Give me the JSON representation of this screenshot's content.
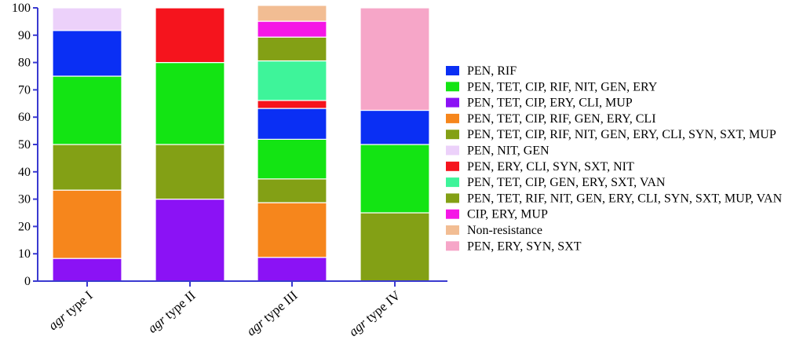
{
  "chart_data": {
    "type": "bar",
    "stacked": true,
    "categories": [
      "agr type I",
      "agr type II",
      "agr type III",
      "agr type IV"
    ],
    "ylim": [
      0,
      100
    ],
    "yticks": [
      0,
      10,
      20,
      30,
      40,
      50,
      60,
      70,
      80,
      90,
      100
    ],
    "grid": false,
    "legend_placement": "right",
    "series": [
      {
        "name": "PEN, TET, CIP, ERY, CLI, MUP",
        "color": "#8b12f5",
        "values": [
          8.3,
          30,
          8.7,
          0
        ]
      },
      {
        "name": "PEN, TET, CIP, RIF, GEN, ERY, CLI",
        "color": "#f6861c",
        "values": [
          25,
          0,
          20,
          0
        ]
      },
      {
        "name": "PEN, TET, CIP, RIF, NIT, GEN, ERY, CLI, SYN, SXT, MUP",
        "color": "#83a015",
        "values": [
          16.7,
          20,
          0,
          0
        ]
      },
      {
        "name": "PEN, TET, RIF, NIT, GEN, ERY, CLI, SYN, SXT, MUP, VAN",
        "color": "#83a015",
        "values": [
          0,
          0,
          8.7,
          25
        ]
      },
      {
        "name": "PEN, TET, CIP, RIF, NIT, GEN, ERY",
        "color": "#13e413",
        "values": [
          25,
          30,
          14.5,
          25
        ]
      },
      {
        "name": "PEN, RIF",
        "color": "#0a2ff4",
        "values": [
          16.7,
          0,
          11.3,
          12.5
        ]
      },
      {
        "name": "PEN, ERY, CLI, SYN, SXT, NIT",
        "color": "#f5141d",
        "values": [
          0,
          20,
          2.9,
          0
        ]
      },
      {
        "name": "PEN, TET, CIP, GEN, ERY, SXT, VAN",
        "color": "#3ef49a",
        "values": [
          0,
          0,
          14.5,
          0
        ]
      },
      {
        "name": "PEN, TET, CIP, RIF, NIT, GEN, ERY, CLI, SYN, SXT, MUP",
        "color": "#83a015",
        "values": [
          0,
          0,
          8.7,
          0
        ],
        "legend": false
      },
      {
        "name": "CIP, ERY, MUP",
        "color": "#f516e6",
        "values": [
          0,
          0,
          5.8,
          0
        ]
      },
      {
        "name": "PEN, NIT, GEN",
        "color": "#ecd1fa",
        "values": [
          8.3,
          0,
          0,
          0
        ]
      },
      {
        "name": "Non-resistance",
        "color": "#f2bd93",
        "values": [
          0,
          0,
          5.8,
          0
        ]
      },
      {
        "name": "PEN, ERY, SYN, SXT",
        "color": "#f6a6c8",
        "values": [
          0,
          0,
          0,
          37.5
        ]
      }
    ],
    "legend": [
      {
        "label": "PEN, RIF",
        "color": "#0a2ff4"
      },
      {
        "label": "PEN, TET, CIP, RIF, NIT, GEN, ERY",
        "color": "#13e413"
      },
      {
        "label": "PEN, TET, CIP, ERY, CLI, MUP",
        "color": "#8b12f5"
      },
      {
        "label": "PEN, TET, CIP, RIF, GEN, ERY, CLI",
        "color": "#f6861c"
      },
      {
        "label": "PEN, TET, CIP, RIF, NIT, GEN, ERY, CLI, SYN, SXT, MUP",
        "color": "#83a015"
      },
      {
        "label": "PEN, NIT, GEN",
        "color": "#ecd1fa"
      },
      {
        "label": "PEN, ERY, CLI, SYN, SXT, NIT",
        "color": "#f5141d"
      },
      {
        "label": "PEN, TET, CIP, GEN, ERY, SXT, VAN",
        "color": "#3ef49a"
      },
      {
        "label": "PEN, TET, RIF, NIT, GEN, ERY, CLI, SYN, SXT, MUP, VAN",
        "color": "#83a015"
      },
      {
        "label": "CIP, ERY, MUP",
        "color": "#f516e6"
      },
      {
        "label": "Non-resistance",
        "color": "#f2bd93"
      },
      {
        "label": "PEN, ERY, SYN, SXT",
        "color": "#f6a6c8"
      }
    ],
    "colors": {
      "axis": "#3a3ad0"
    }
  }
}
